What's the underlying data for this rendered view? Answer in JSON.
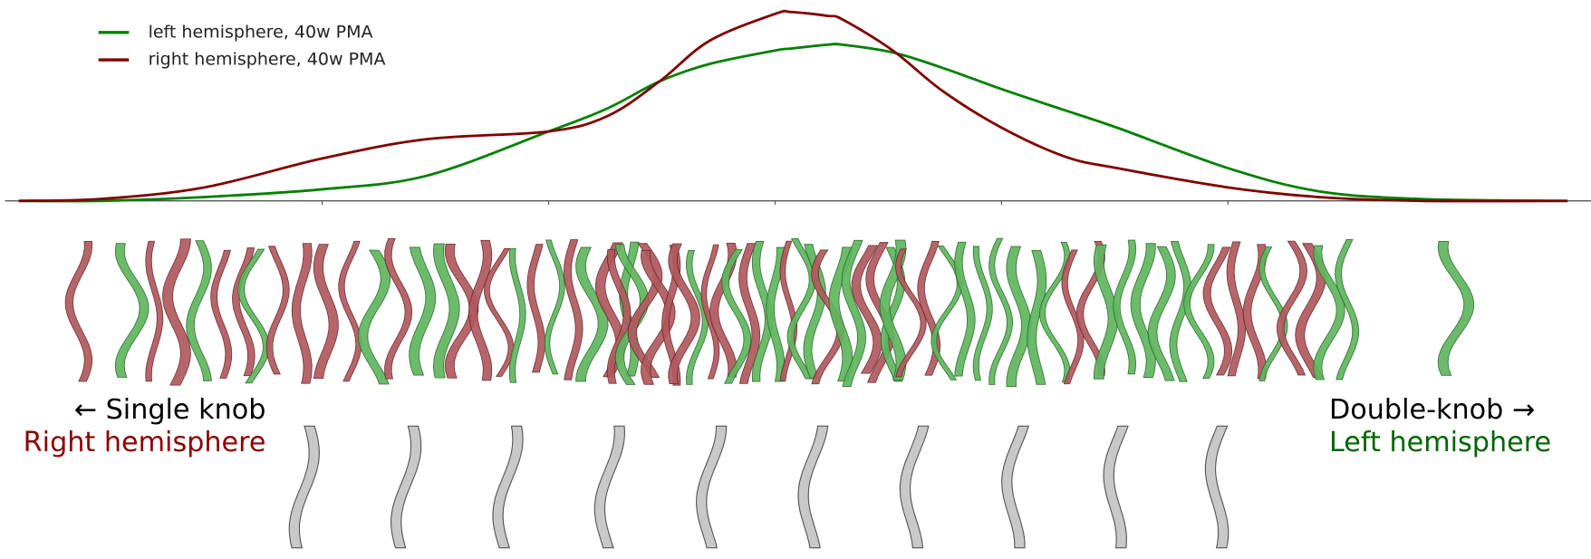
{
  "chart_data": {
    "type": "line",
    "x": [
      -3.34,
      -2.98,
      -2.52,
      -2,
      -1.54,
      -1,
      -0.74,
      -0.51,
      -0.29,
      0,
      0.07,
      0.23,
      0.3,
      0.52,
      0.74,
      1,
      1.28,
      1.51,
      2,
      2.4,
      2.85,
      3.5
    ],
    "series": [
      {
        "name": "left hemisphere, 40w PMA",
        "color": "#008000",
        "values": [
          0,
          0,
          0.02,
          0.06,
          0.13,
          0.36,
          0.48,
          0.62,
          0.71,
          0.78,
          0.79,
          0.81,
          0.81,
          0.77,
          0.69,
          0.58,
          0.47,
          0.38,
          0.17,
          0.05,
          0.01,
          0
        ]
      },
      {
        "name": "right hemisphere, 40w PMA",
        "color": "#800000",
        "values": [
          0,
          0.01,
          0.07,
          0.22,
          0.32,
          0.36,
          0.44,
          0.62,
          0.83,
          0.97,
          0.98,
          0.96,
          0.94,
          0.78,
          0.57,
          0.38,
          0.23,
          0.17,
          0.07,
          0.02,
          0,
          0
        ]
      }
    ],
    "xlim": [
      -3.4,
      3.5
    ],
    "ylim": [
      0,
      1
    ],
    "xticks": [
      -2,
      -1,
      0,
      1,
      2
    ],
    "show_tick_labels": false,
    "legend": "upper left",
    "annotations": [
      {
        "text": "← Single knob",
        "color": "#000000"
      },
      {
        "text": "Right hemisphere",
        "color": "#8b0000"
      },
      {
        "text": "Double-knob →",
        "color": "#000000"
      },
      {
        "text": "Left hemisphere",
        "color": "#006400"
      }
    ]
  }
}
